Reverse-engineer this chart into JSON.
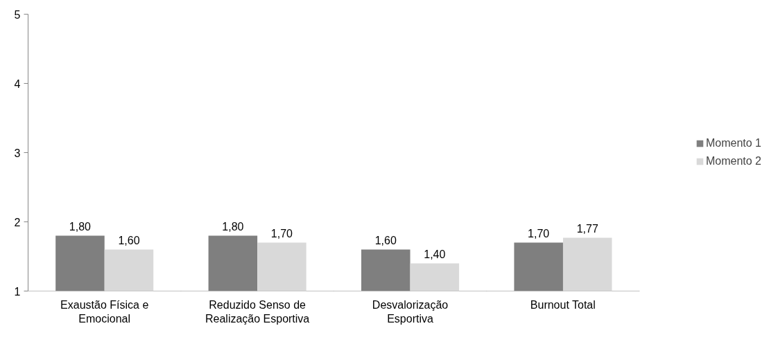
{
  "chart_data": {
    "type": "bar",
    "categories": [
      "Exaustão Física e Emocional",
      "Reduzido Senso de Realização Esportiva",
      "Desvalorização Esportiva",
      "Burnout Total"
    ],
    "series": [
      {
        "name": "Momento 1",
        "color": "#7f7f7f",
        "values": [
          1.8,
          1.8,
          1.6,
          1.7
        ],
        "value_labels": [
          "1,80",
          "1,80",
          "1,60",
          "1,70"
        ]
      },
      {
        "name": "Momento 2",
        "color": "#d9d9d9",
        "values": [
          1.6,
          1.7,
          1.4,
          1.77
        ],
        "value_labels": [
          "1,60",
          "1,70",
          "1,40",
          "1,77"
        ]
      }
    ],
    "ylim": [
      1,
      5
    ],
    "yticks": [
      1,
      2,
      3,
      4,
      5
    ],
    "grid": false,
    "legend": "right",
    "marker": "square"
  }
}
